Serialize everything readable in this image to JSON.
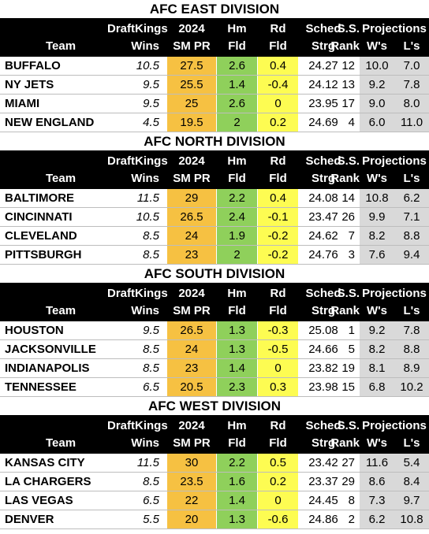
{
  "headers": {
    "draftkings": "DraftKings",
    "wins": "Wins",
    "year": "2024",
    "smpr": "SM PR",
    "hm": "Hm",
    "fld1": "Fld",
    "rd": "Rd",
    "fld2": "Fld",
    "sched": "Sched",
    "strg": "Strg",
    "ss": "S.S.",
    "rank": "Rank",
    "projections": "Projections",
    "ws": "W's",
    "ls": "L's",
    "team": "Team"
  },
  "divisions": [
    {
      "title": "AFC EAST DIVISION",
      "rows": [
        {
          "team": "BUFFALO",
          "wins": "10.5",
          "smpr": "27.5",
          "hm": "2.6",
          "rd": "0.4",
          "strg": "24.27",
          "rank": "12",
          "w": "10.0",
          "l": "7.0"
        },
        {
          "team": "NY JETS",
          "wins": "9.5",
          "smpr": "25.5",
          "hm": "1.4",
          "rd": "-0.4",
          "strg": "24.12",
          "rank": "13",
          "w": "9.2",
          "l": "7.8"
        },
        {
          "team": "MIAMI",
          "wins": "9.5",
          "smpr": "25",
          "hm": "2.6",
          "rd": "0",
          "strg": "23.95",
          "rank": "17",
          "w": "9.0",
          "l": "8.0"
        },
        {
          "team": "NEW ENGLAND",
          "wins": "4.5",
          "smpr": "19.5",
          "hm": "2",
          "rd": "0.2",
          "strg": "24.69",
          "rank": "4",
          "w": "6.0",
          "l": "11.0"
        }
      ]
    },
    {
      "title": "AFC NORTH DIVISION",
      "rows": [
        {
          "team": "BALTIMORE",
          "wins": "11.5",
          "smpr": "29",
          "hm": "2.2",
          "rd": "0.4",
          "strg": "24.08",
          "rank": "14",
          "w": "10.8",
          "l": "6.2"
        },
        {
          "team": "CINCINNATI",
          "wins": "10.5",
          "smpr": "26.5",
          "hm": "2.4",
          "rd": "-0.1",
          "strg": "23.47",
          "rank": "26",
          "w": "9.9",
          "l": "7.1"
        },
        {
          "team": "CLEVELAND",
          "wins": "8.5",
          "smpr": "24",
          "hm": "1.9",
          "rd": "-0.2",
          "strg": "24.62",
          "rank": "7",
          "w": "8.2",
          "l": "8.8"
        },
        {
          "team": "PITTSBURGH",
          "wins": "8.5",
          "smpr": "23",
          "hm": "2",
          "rd": "-0.2",
          "strg": "24.76",
          "rank": "3",
          "w": "7.6",
          "l": "9.4"
        }
      ]
    },
    {
      "title": "AFC SOUTH DIVISION",
      "rows": [
        {
          "team": "HOUSTON",
          "wins": "9.5",
          "smpr": "26.5",
          "hm": "1.3",
          "rd": "-0.3",
          "strg": "25.08",
          "rank": "1",
          "w": "9.2",
          "l": "7.8"
        },
        {
          "team": "JACKSONVILLE",
          "wins": "8.5",
          "smpr": "24",
          "hm": "1.3",
          "rd": "-0.5",
          "strg": "24.66",
          "rank": "5",
          "w": "8.2",
          "l": "8.8"
        },
        {
          "team": "INDIANAPOLIS",
          "wins": "8.5",
          "smpr": "23",
          "hm": "1.4",
          "rd": "0",
          "strg": "23.82",
          "rank": "19",
          "w": "8.1",
          "l": "8.9"
        },
        {
          "team": "TENNESSEE",
          "wins": "6.5",
          "smpr": "20.5",
          "hm": "2.3",
          "rd": "0.3",
          "strg": "23.98",
          "rank": "15",
          "w": "6.8",
          "l": "10.2"
        }
      ]
    },
    {
      "title": "AFC WEST DIVISION",
      "rows": [
        {
          "team": "KANSAS CITY",
          "wins": "11.5",
          "smpr": "30",
          "hm": "2.2",
          "rd": "0.5",
          "strg": "23.42",
          "rank": "27",
          "w": "11.6",
          "l": "5.4"
        },
        {
          "team": "LA CHARGERS",
          "wins": "8.5",
          "smpr": "23.5",
          "hm": "1.6",
          "rd": "0.2",
          "strg": "23.37",
          "rank": "29",
          "w": "8.6",
          "l": "8.4"
        },
        {
          "team": "LAS VEGAS",
          "wins": "6.5",
          "smpr": "22",
          "hm": "1.4",
          "rd": "0",
          "strg": "24.45",
          "rank": "8",
          "w": "7.3",
          "l": "9.7"
        },
        {
          "team": "DENVER",
          "wins": "5.5",
          "smpr": "20",
          "hm": "1.3",
          "rd": "-0.6",
          "strg": "24.86",
          "rank": "2",
          "w": "6.2",
          "l": "10.8"
        }
      ]
    }
  ]
}
